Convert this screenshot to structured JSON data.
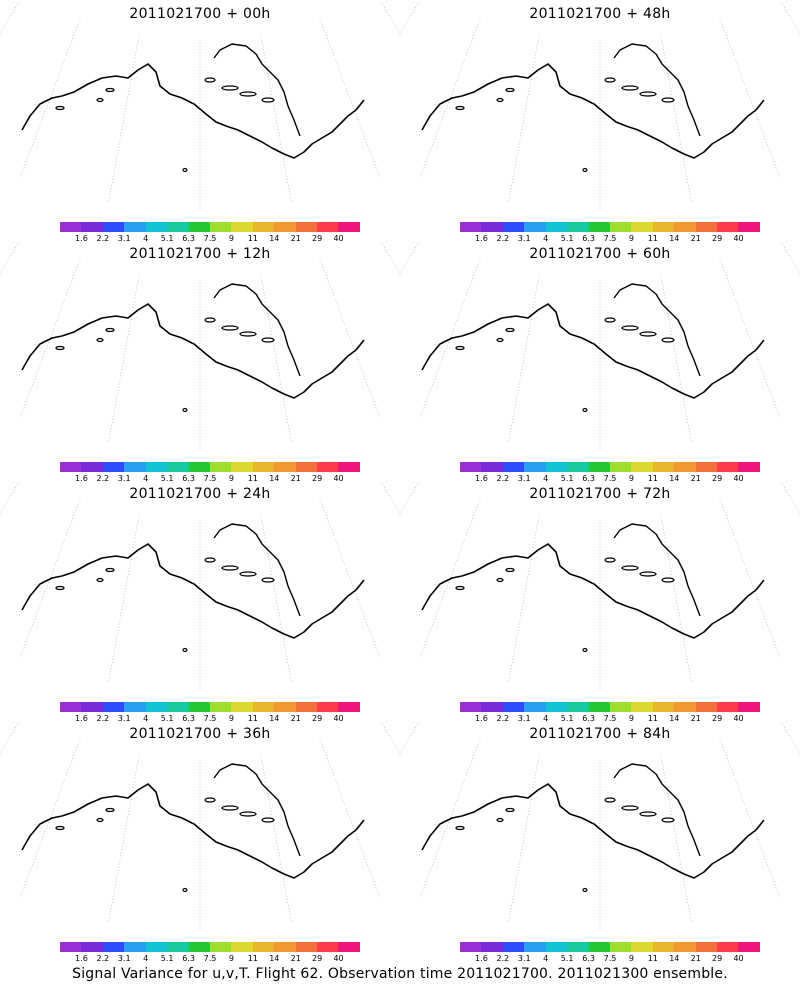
{
  "colorbar": {
    "colors": [
      "#9b2fd6",
      "#7a2ad8",
      "#2f4dff",
      "#25a0f3",
      "#12c3d6",
      "#18c99d",
      "#22c933",
      "#9ede2f",
      "#d9d930",
      "#e8b52c",
      "#f2982c",
      "#f56f3c",
      "#ff3d4b",
      "#f0167c"
    ],
    "labels": [
      "1.6",
      "2.2",
      "3.1",
      "4",
      "5.1",
      "6.3",
      "7.5",
      "9",
      "11",
      "14",
      "21",
      "29",
      "40"
    ]
  },
  "panels": [
    {
      "id": "p00",
      "title": "2011021700 + 00h",
      "variant": 0
    },
    {
      "id": "p48",
      "title": "2011021700 + 48h",
      "variant": 4
    },
    {
      "id": "p12",
      "title": "2011021700 + 12h",
      "variant": 1
    },
    {
      "id": "p60",
      "title": "2011021700 + 60h",
      "variant": 5
    },
    {
      "id": "p24",
      "title": "2011021700 + 24h",
      "variant": 2
    },
    {
      "id": "p72",
      "title": "2011021700 + 72h",
      "variant": 6
    },
    {
      "id": "p36",
      "title": "2011021700 + 36h",
      "variant": 3
    },
    {
      "id": "p84",
      "title": "2011021700 + 84h",
      "variant": 7
    }
  ],
  "footer": "Signal Variance for u,v,T. Flight 62. Observation time 2011021700. 2011021300 ensemble."
}
